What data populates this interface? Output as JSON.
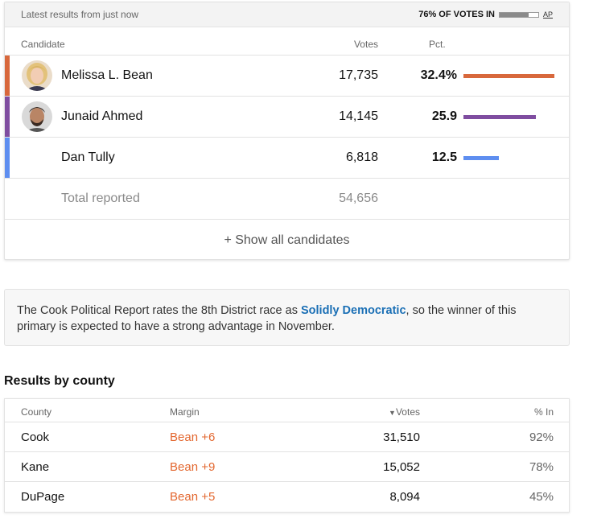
{
  "header": {
    "latest": "Latest results from just now",
    "votes_in": "76% OF VOTES IN",
    "votes_in_fraction": 0.76,
    "source": "AP"
  },
  "columns": {
    "candidate": "Candidate",
    "votes": "Votes",
    "pct": "Pct."
  },
  "candidates": [
    {
      "name": "Melissa L. Bean",
      "votes": "17,735",
      "pct": "32.4%",
      "pct_value": 32.4,
      "color": "#d8683c",
      "avatar": "woman-portrait"
    },
    {
      "name": "Junaid Ahmed",
      "votes": "14,145",
      "pct": "25.9",
      "pct_value": 25.9,
      "color": "#7f4da0",
      "avatar": "man-portrait"
    },
    {
      "name": "Dan Tully",
      "votes": "6,818",
      "pct": "12.5",
      "pct_value": 12.5,
      "color": "#5e8ef0",
      "avatar": ""
    }
  ],
  "total": {
    "label": "Total reported",
    "votes": "54,656"
  },
  "show_all": "+ Show all candidates",
  "info": {
    "before": "The Cook Political Report rates the 8th District race as ",
    "highlight": "Solidly Democratic",
    "after": ", so the winner of this primary is expected to have a strong advantage in November."
  },
  "county": {
    "title": "Results by county",
    "headers": {
      "county": "County",
      "margin": "Margin",
      "votes": "Votes",
      "votes_sort_icon": "▼",
      "pct_in": "% In"
    },
    "rows": [
      {
        "county": "Cook",
        "margin": "Bean +6",
        "votes": "31,510",
        "pct_in": "92%"
      },
      {
        "county": "Kane",
        "margin": "Bean +9",
        "votes": "15,052",
        "pct_in": "78%"
      },
      {
        "county": "DuPage",
        "margin": "Bean +5",
        "votes": "8,094",
        "pct_in": "45%"
      }
    ]
  },
  "colors": {
    "accent_link": "#1a6fb5",
    "margin_text": "#e3672f"
  }
}
